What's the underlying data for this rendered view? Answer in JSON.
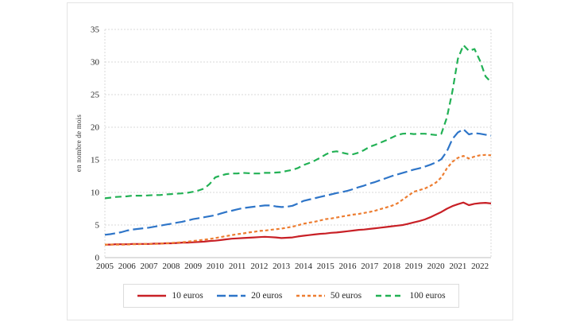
{
  "y_axis_title": "en nombre de mois",
  "chart_data": {
    "type": "line",
    "title": "",
    "xlabel": "",
    "ylabel": "en nombre de mois",
    "ylim": [
      0,
      35
    ],
    "yticks": [
      0,
      5,
      10,
      15,
      20,
      25,
      30,
      35
    ],
    "xticks": [
      2005,
      2006,
      2007,
      2008,
      2009,
      2010,
      2011,
      2012,
      2013,
      2014,
      2015,
      2016,
      2017,
      2018,
      2019,
      2020,
      2021,
      2022
    ],
    "x_range": [
      2005,
      2022.5
    ],
    "x_start": 2005,
    "x_step": 0.25,
    "grid": "dashed horizontal gridlines at each ytick, dashed vertical lines at plot left and right edges, solid bottom axis",
    "legend_position": "bottom",
    "colors": {
      "grid": "#d9d9d9",
      "axis": "#bfbfbf",
      "text": "#262626"
    },
    "series": [
      {
        "name": "10 euros",
        "color": "#c82026",
        "dash": "solid",
        "values": [
          2.0,
          2.0,
          2.05,
          2.05,
          2.05,
          2.1,
          2.1,
          2.1,
          2.1,
          2.15,
          2.15,
          2.2,
          2.2,
          2.25,
          2.3,
          2.3,
          2.35,
          2.4,
          2.45,
          2.55,
          2.6,
          2.7,
          2.8,
          2.9,
          2.95,
          3.0,
          3.05,
          3.1,
          3.15,
          3.2,
          3.15,
          3.1,
          3.0,
          3.05,
          3.1,
          3.25,
          3.35,
          3.45,
          3.55,
          3.65,
          3.7,
          3.8,
          3.85,
          3.95,
          4.05,
          4.15,
          4.25,
          4.3,
          4.4,
          4.5,
          4.6,
          4.7,
          4.8,
          4.9,
          5.0,
          5.2,
          5.4,
          5.6,
          5.85,
          6.2,
          6.6,
          7.0,
          7.5,
          7.9,
          8.2,
          8.45,
          8.05,
          8.25,
          8.35,
          8.4,
          8.3
        ]
      },
      {
        "name": "20 euros",
        "color": "#2e75c8",
        "dash": "long-dash",
        "values": [
          3.5,
          3.6,
          3.75,
          3.9,
          4.15,
          4.3,
          4.4,
          4.5,
          4.6,
          4.75,
          4.9,
          5.05,
          5.2,
          5.35,
          5.5,
          5.7,
          5.9,
          6.05,
          6.2,
          6.35,
          6.5,
          6.75,
          7.0,
          7.2,
          7.4,
          7.6,
          7.7,
          7.8,
          7.9,
          8.0,
          8.0,
          7.85,
          7.75,
          7.8,
          7.95,
          8.3,
          8.7,
          8.9,
          9.1,
          9.3,
          9.5,
          9.7,
          9.9,
          10.05,
          10.25,
          10.5,
          10.8,
          11.05,
          11.35,
          11.6,
          11.9,
          12.2,
          12.5,
          12.75,
          13.0,
          13.25,
          13.5,
          13.7,
          13.95,
          14.25,
          14.6,
          15.1,
          16.3,
          18.2,
          19.2,
          19.7,
          18.9,
          19.1,
          19.0,
          18.85,
          18.7
        ]
      },
      {
        "name": "50 euros",
        "color": "#ed7d31",
        "dash": "short-dash",
        "values": [
          2.0,
          2.0,
          2.0,
          2.0,
          2.0,
          2.05,
          2.05,
          2.1,
          2.1,
          2.1,
          2.15,
          2.2,
          2.25,
          2.3,
          2.35,
          2.45,
          2.55,
          2.65,
          2.75,
          2.85,
          3.0,
          3.15,
          3.3,
          3.45,
          3.6,
          3.7,
          3.85,
          3.95,
          4.1,
          4.15,
          4.25,
          4.35,
          4.45,
          4.6,
          4.75,
          4.95,
          5.2,
          5.35,
          5.5,
          5.7,
          5.9,
          6.0,
          6.15,
          6.3,
          6.45,
          6.6,
          6.7,
          6.85,
          7.0,
          7.2,
          7.45,
          7.7,
          7.95,
          8.3,
          8.9,
          9.5,
          10.1,
          10.35,
          10.6,
          11.0,
          11.5,
          12.3,
          13.7,
          14.7,
          15.3,
          15.6,
          15.2,
          15.5,
          15.7,
          15.75,
          15.7
        ]
      },
      {
        "name": "100 euros",
        "color": "#22b155",
        "dash": "medium-dash",
        "values": [
          9.1,
          9.2,
          9.3,
          9.35,
          9.4,
          9.5,
          9.5,
          9.5,
          9.55,
          9.6,
          9.6,
          9.7,
          9.75,
          9.8,
          9.85,
          9.95,
          10.1,
          10.3,
          10.6,
          11.3,
          12.3,
          12.6,
          12.8,
          12.9,
          12.9,
          13.0,
          12.95,
          12.9,
          12.9,
          13.0,
          13.0,
          13.05,
          13.1,
          13.3,
          13.45,
          13.75,
          14.2,
          14.5,
          14.85,
          15.3,
          15.8,
          16.2,
          16.3,
          16.1,
          15.9,
          15.85,
          16.1,
          16.5,
          17.0,
          17.3,
          17.65,
          18.0,
          18.4,
          18.8,
          19.0,
          19.05,
          18.95,
          19.0,
          19.0,
          18.9,
          18.8,
          19.0,
          21.5,
          25.5,
          30.5,
          32.6,
          31.7,
          32.0,
          30.2,
          27.8,
          26.9
        ]
      }
    ]
  }
}
